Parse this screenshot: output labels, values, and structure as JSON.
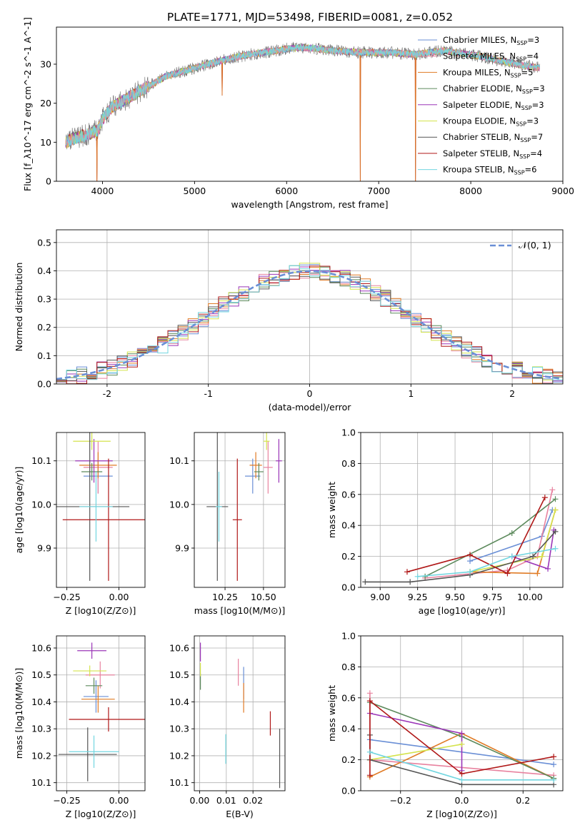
{
  "figure_title": "PLATE=1771, MJD=53498, FIBERID=0081, z=0.052",
  "palette": [
    "#6a8fd6",
    "#e8829f",
    "#e07b25",
    "#5c8a5c",
    "#9b36b8",
    "#d4e34c",
    "#555555",
    "#b01818",
    "#72d6e0"
  ],
  "chart_data": [
    {
      "id": "spectrum",
      "type": "line",
      "xlabel": "wavelength [Angstrom, rest frame]",
      "ylabel": "Flux [f_λ10^-17 erg cm^-2 s^-1 A^-1]",
      "xlim": [
        3500,
        9000
      ],
      "ylim": [
        0,
        39.5
      ],
      "xticks": [
        4000,
        5000,
        6000,
        7000,
        8000,
        9000
      ],
      "yticks": [
        0,
        10,
        20,
        30
      ],
      "legend_position": "upper right",
      "continuum_knots": [
        [
          3600,
          10
        ],
        [
          3700,
          11
        ],
        [
          3850,
          12
        ],
        [
          3950,
          13
        ],
        [
          4000,
          16
        ],
        [
          4100,
          19
        ],
        [
          4250,
          21
        ],
        [
          4400,
          23
        ],
        [
          4700,
          27
        ],
        [
          5000,
          29
        ],
        [
          5300,
          31
        ],
        [
          5600,
          32.5
        ],
        [
          5900,
          33.5
        ],
        [
          6000,
          34
        ],
        [
          6200,
          34.3
        ],
        [
          6500,
          33.5
        ],
        [
          6800,
          33
        ],
        [
          7100,
          33
        ],
        [
          7400,
          32.5
        ],
        [
          7700,
          33.5
        ],
        [
          8100,
          32
        ],
        [
          8500,
          30
        ],
        [
          8750,
          29
        ]
      ],
      "notable_features": [
        {
          "type": "dip",
          "x": 3940,
          "y": 0
        },
        {
          "type": "dip",
          "x": 5300,
          "y": 22
        },
        {
          "type": "dip",
          "x": 6800,
          "y": 0
        },
        {
          "type": "dip",
          "x": 7400,
          "y": 0
        }
      ],
      "series": [
        {
          "name": "Chabrier MILES",
          "nssp": "3"
        },
        {
          "name": "Salpeter MILES",
          "nssp": "4"
        },
        {
          "name": "Kroupa MILES",
          "nssp": "5"
        },
        {
          "name": "Chabrier ELODIE",
          "nssp": "3"
        },
        {
          "name": "Salpeter ELODIE",
          "nssp": "3"
        },
        {
          "name": "Kroupa ELODIE",
          "nssp": "3"
        },
        {
          "name": "Chabrier STELIB",
          "nssp": "7"
        },
        {
          "name": "Salpeter STELIB",
          "nssp": "4"
        },
        {
          "name": "Kroupa STELIB",
          "nssp": "6"
        }
      ]
    },
    {
      "id": "residuals",
      "type": "histogram",
      "xlabel": "(data-model)/error",
      "ylabel": "Normed distribution",
      "xlim": [
        -2.5,
        2.5
      ],
      "ylim": [
        0,
        0.545
      ],
      "xticks": [
        -2,
        -1,
        0,
        1,
        2
      ],
      "yticks": [
        0.0,
        0.1,
        0.2,
        0.3,
        0.4,
        0.5
      ],
      "bin_width": 0.1,
      "reference_label": "𝒩(0, 1)",
      "reference": {
        "type": "gaussian",
        "mean": 0,
        "sigma": 1
      },
      "legend_position": "upper right"
    },
    {
      "id": "age_vs_Z",
      "type": "errorbar",
      "xlabel": "Z [log10(Z/Z⊙)]",
      "ylabel": "age  [log10(age/yr)]",
      "xlim": [
        -0.3,
        0.125
      ],
      "ylim": [
        9.81,
        10.165
      ],
      "xticks": [
        -0.25,
        0.0
      ],
      "xticklabels": [
        "−0.25",
        "0.00"
      ],
      "yticks": [
        9.9,
        10.0,
        10.1
      ],
      "points": [
        {
          "x": -0.1,
          "y": 10.065,
          "xerr": 0.07,
          "yerr": 0.04
        },
        {
          "x": -0.1,
          "y": 10.085,
          "xerr": 0.07,
          "yerr": 0.06
        },
        {
          "x": -0.1,
          "y": 10.09,
          "xerr": 0.09,
          "yerr": 0.03
        },
        {
          "x": -0.13,
          "y": 10.075,
          "xerr": 0.05,
          "yerr": 0.02
        },
        {
          "x": -0.12,
          "y": 10.1,
          "xerr": 0.09,
          "yerr": 0.05
        },
        {
          "x": -0.13,
          "y": 10.145,
          "xerr": 0.09,
          "yerr": 0.02
        },
        {
          "x": -0.14,
          "y": 9.995,
          "xerr": 0.19,
          "yerr": 0.17
        },
        {
          "x": -0.05,
          "y": 9.965,
          "xerr": 0.22,
          "yerr": 0.14
        },
        {
          "x": -0.11,
          "y": 9.995,
          "xerr": 0.08,
          "yerr": 0.08
        }
      ]
    },
    {
      "id": "age_vs_mass",
      "type": "errorbar",
      "xlabel": "mass [log10(M/M⊙)]",
      "ylabel": "",
      "xlim": [
        10.05,
        10.64
      ],
      "ylim": [
        9.81,
        10.165
      ],
      "xticks": [
        10.25,
        10.5
      ],
      "xticklabels": [
        "10.25",
        "10.50"
      ],
      "yticks": [
        9.9,
        10.0,
        10.1
      ],
      "points": [
        {
          "x": 10.43,
          "y": 10.065,
          "xerr": 0.05,
          "yerr": 0.04
        },
        {
          "x": 10.53,
          "y": 10.085,
          "xerr": 0.03,
          "yerr": 0.06
        },
        {
          "x": 10.45,
          "y": 10.09,
          "xerr": 0.04,
          "yerr": 0.03
        },
        {
          "x": 10.47,
          "y": 10.075,
          "xerr": 0.03,
          "yerr": 0.02
        },
        {
          "x": 10.6,
          "y": 10.1,
          "xerr": 0.02,
          "yerr": 0.05
        },
        {
          "x": 10.52,
          "y": 10.145,
          "xerr": 0.02,
          "yerr": 0.02
        },
        {
          "x": 10.2,
          "y": 9.995,
          "xerr": 0.07,
          "yerr": 0.17
        },
        {
          "x": 10.33,
          "y": 9.965,
          "xerr": 0.03,
          "yerr": 0.14
        },
        {
          "x": 10.21,
          "y": 9.995,
          "xerr": 0.02,
          "yerr": 0.08
        }
      ]
    },
    {
      "id": "massweight_vs_age",
      "type": "line",
      "xlabel": "age  [log10(age/yr)]",
      "ylabel": "mass weight",
      "xlim": [
        8.87,
        10.22
      ],
      "ylim": [
        0,
        1.0
      ],
      "xticks": [
        9.0,
        9.25,
        9.5,
        9.75,
        10.0
      ],
      "xticklabels": [
        "9.00",
        "9.25",
        "9.50",
        "9.75",
        "10.00"
      ],
      "yticks": [
        0.0,
        0.2,
        0.4,
        0.6,
        0.8,
        1.0
      ],
      "series": [
        {
          "x": [
            9.6,
            10.08,
            10.15
          ],
          "y": [
            0.17,
            0.33,
            0.5
          ]
        },
        {
          "x": [
            9.3,
            9.85,
            10.05,
            10.15
          ],
          "y": [
            0.06,
            0.11,
            0.2,
            0.63
          ]
        },
        {
          "x": [
            9.6,
            10.05,
            10.17
          ],
          "y": [
            0.1,
            0.09,
            0.5
          ]
        },
        {
          "x": [
            9.3,
            9.88,
            10.17
          ],
          "y": [
            0.07,
            0.35,
            0.57
          ]
        },
        {
          "x": [
            9.88,
            10.12,
            10.16
          ],
          "y": [
            0.2,
            0.12,
            0.37
          ]
        },
        {
          "x": [
            9.6,
            10.08,
            10.17
          ],
          "y": [
            0.1,
            0.2,
            0.5
          ]
        },
        {
          "x": [
            8.9,
            9.2,
            9.6,
            10.02,
            10.17
          ],
          "y": [
            0.035,
            0.035,
            0.08,
            0.2,
            0.36
          ]
        },
        {
          "x": [
            9.18,
            9.6,
            9.85,
            10.1
          ],
          "y": [
            0.1,
            0.21,
            0.09,
            0.58
          ]
        },
        {
          "x": [
            9.25,
            9.6,
            9.88,
            10.17
          ],
          "y": [
            0.07,
            0.1,
            0.2,
            0.25
          ]
        }
      ]
    },
    {
      "id": "mass_vs_Z",
      "type": "errorbar",
      "xlabel": "Z [log10(Z/Z⊙)]",
      "ylabel": "mass [log10(M/M⊙)]",
      "xlim": [
        -0.3,
        0.125
      ],
      "ylim": [
        10.07,
        10.645
      ],
      "xticks": [
        -0.25,
        0.0
      ],
      "xticklabels": [
        "−0.25",
        "0.00"
      ],
      "yticks": [
        10.1,
        10.2,
        10.3,
        10.4,
        10.5,
        10.6
      ],
      "points": [
        {
          "x": -0.11,
          "y": 10.42,
          "xerr": 0.06,
          "yerr": 0.06
        },
        {
          "x": -0.09,
          "y": 10.5,
          "xerr": 0.07,
          "yerr": 0.05
        },
        {
          "x": -0.1,
          "y": 10.41,
          "xerr": 0.08,
          "yerr": 0.05
        },
        {
          "x": -0.12,
          "y": 10.46,
          "xerr": 0.04,
          "yerr": 0.03
        },
        {
          "x": -0.13,
          "y": 10.59,
          "xerr": 0.07,
          "yerr": 0.03
        },
        {
          "x": -0.14,
          "y": 10.515,
          "xerr": 0.08,
          "yerr": 0.02
        },
        {
          "x": -0.15,
          "y": 10.205,
          "xerr": 0.14,
          "yerr": 0.1
        },
        {
          "x": -0.05,
          "y": 10.335,
          "xerr": 0.19,
          "yerr": 0.045
        },
        {
          "x": -0.12,
          "y": 10.215,
          "xerr": 0.12,
          "yerr": 0.06
        }
      ]
    },
    {
      "id": "mass_vs_ebv",
      "type": "errorbar",
      "xlabel": "E(B-V)",
      "ylabel": "",
      "xlim": [
        -0.002,
        0.032
      ],
      "ylim": [
        10.07,
        10.645
      ],
      "xticks": [
        0.0,
        0.01,
        0.02
      ],
      "xticklabels": [
        "0.00",
        "0.01",
        "0.02"
      ],
      "yticks": [
        10.1,
        10.2,
        10.3,
        10.4,
        10.5,
        10.6
      ],
      "points": [
        {
          "x": 0.0165,
          "y": 10.47,
          "xerr": 0,
          "yerr": 0.06
        },
        {
          "x": 0.0145,
          "y": 10.51,
          "xerr": 0,
          "yerr": 0.05
        },
        {
          "x": 0.0165,
          "y": 10.415,
          "xerr": 0,
          "yerr": 0.055
        },
        {
          "x": 0.0003,
          "y": 10.475,
          "xerr": 0,
          "yerr": 0.03
        },
        {
          "x": 0.0003,
          "y": 10.585,
          "xerr": 0,
          "yerr": 0.035
        },
        {
          "x": 0.0003,
          "y": 10.52,
          "xerr": 0,
          "yerr": 0.025
        },
        {
          "x": 0.03,
          "y": 10.19,
          "xerr": 0,
          "yerr": 0.11
        },
        {
          "x": 0.0265,
          "y": 10.32,
          "xerr": 0,
          "yerr": 0.045
        },
        {
          "x": 0.0098,
          "y": 10.225,
          "xerr": 0,
          "yerr": 0.055
        }
      ]
    },
    {
      "id": "massweight_vs_Z",
      "type": "line",
      "xlabel": "Z [log10(Z/Z⊙)]",
      "ylabel": "mass weight",
      "xlim": [
        -0.33,
        0.33
      ],
      "ylim": [
        0,
        1.0
      ],
      "xticks": [
        -0.2,
        0.0,
        0.2
      ],
      "xticklabels": [
        "−0.2",
        "0.0",
        "0.2"
      ],
      "yticks": [
        0.0,
        0.2,
        0.4,
        0.6,
        0.8,
        1.0
      ],
      "series": [
        {
          "x": [
            -0.3,
            0.3
          ],
          "y": [
            0.33,
            0.17
          ]
        },
        {
          "x": [
            -0.3,
            -0.3,
            0.3
          ],
          "y": [
            0.63,
            0.2,
            0.1
          ]
        },
        {
          "x": [
            -0.3,
            0.0,
            0.3
          ],
          "y": [
            0.09,
            0.37,
            0.08
          ]
        },
        {
          "x": [
            -0.3,
            0.0,
            0.3
          ],
          "y": [
            0.57,
            0.35,
            0.08
          ]
        },
        {
          "x": [
            -0.3,
            0.0,
            0.0
          ],
          "y": [
            0.5,
            0.37,
            0.13
          ]
        },
        {
          "x": [
            -0.3,
            0.0
          ],
          "y": [
            0.2,
            0.3
          ]
        },
        {
          "x": [
            -0.3,
            -0.3,
            0.0,
            0.3
          ],
          "y": [
            0.36,
            0.2,
            0.04,
            0.04
          ]
        },
        {
          "x": [
            -0.3,
            -0.3,
            0.0,
            0.3
          ],
          "y": [
            0.1,
            0.58,
            0.11,
            0.22
          ]
        },
        {
          "x": [
            -0.3,
            0.0,
            0.3
          ],
          "y": [
            0.25,
            0.07,
            0.07
          ]
        }
      ]
    }
  ]
}
